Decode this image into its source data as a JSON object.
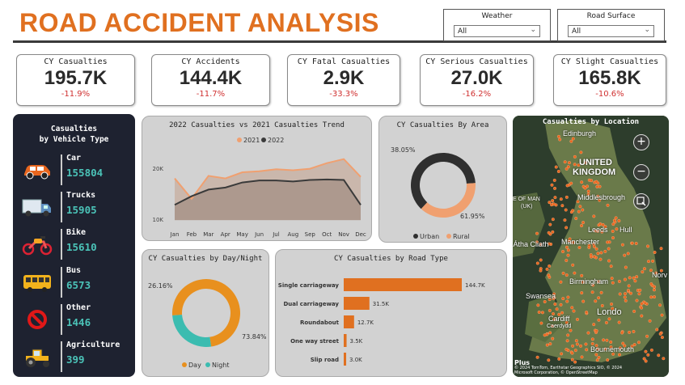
{
  "header": {
    "title": "ROAD ACCIDENT ANALYSIS"
  },
  "filters": {
    "weather": {
      "label": "Weather",
      "value": "All"
    },
    "road_surface": {
      "label": "Road Surface",
      "value": "All"
    }
  },
  "kpis": [
    {
      "label": "CY Casualties",
      "value": "195.7K",
      "change": "-11.9%"
    },
    {
      "label": "CY Accidents",
      "value": "144.4K",
      "change": "-11.7%"
    },
    {
      "label": "CY Fatal Casualties",
      "value": "2.9K",
      "change": "-33.3%"
    },
    {
      "label": "CY Serious Casualties",
      "value": "27.0K",
      "change": "-16.2%"
    },
    {
      "label": "CY Slight Casualties",
      "value": "165.8K",
      "change": "-10.6%"
    }
  ],
  "vehicle_panel": {
    "title_line1": "Casualties",
    "title_line2": "by Vehicle Type",
    "items": [
      {
        "name": "Car",
        "value": "155804",
        "icon": "car-icon"
      },
      {
        "name": "Trucks",
        "value": "15905",
        "icon": "truck-icon"
      },
      {
        "name": "Bike",
        "value": "15610",
        "icon": "motorbike-icon"
      },
      {
        "name": "Bus",
        "value": "6573",
        "icon": "bus-icon"
      },
      {
        "name": "Other",
        "value": "1446",
        "icon": "no-entry-icon"
      },
      {
        "name": "Agriculture",
        "value": "399",
        "icon": "tractor-icon"
      }
    ]
  },
  "colors": {
    "accent": "#e07020",
    "teal": "#4bc3b8",
    "negative": "#d03030",
    "dark": "#1e2230"
  },
  "chart_data": [
    {
      "type": "area",
      "title": "2022 Casualties vs 2021 Casualties Trend",
      "categories": [
        "Jan",
        "Feb",
        "Mar",
        "Apr",
        "May",
        "Jun",
        "Jul",
        "Aug",
        "Sep",
        "Oct",
        "Nov",
        "Dec"
      ],
      "yticks": [
        "20K",
        "10K"
      ],
      "yticks_values": [
        20000,
        10000
      ],
      "ylim": [
        9500,
        23500
      ],
      "series": [
        {
          "name": "2021",
          "color": "#f0a070",
          "values": [
            18000,
            14000,
            18500,
            18000,
            19200,
            19400,
            19800,
            19600,
            19900,
            21000,
            21800,
            18300
          ]
        },
        {
          "name": "2022",
          "color": "#3a3a3a",
          "values": [
            12800,
            14500,
            15800,
            16200,
            17200,
            17600,
            17600,
            17400,
            17700,
            17800,
            17700,
            12800
          ]
        }
      ],
      "legend": "top-center"
    },
    {
      "type": "pie",
      "title": "CY Casualties By Area",
      "labels": [
        "Urban",
        "Rural"
      ],
      "values": [
        61.95,
        38.05
      ],
      "value_labels": [
        "61.95%",
        "38.05%"
      ],
      "colors": [
        "#2f2f2f",
        "#f0a070"
      ]
    },
    {
      "type": "pie",
      "title": "CY Casualties by Day/Night",
      "labels": [
        "Day",
        "Night"
      ],
      "values": [
        73.84,
        26.16
      ],
      "value_labels": [
        "73.84%",
        "26.16%"
      ],
      "colors": [
        "#e8901e",
        "#3bbcb0"
      ]
    },
    {
      "type": "bar",
      "orientation": "horizontal",
      "title": "CY Casualties by Road Type",
      "categories": [
        "Single carriageway",
        "Dual carriageway",
        "Roundabout",
        "One way street",
        "Slip road"
      ],
      "values": [
        144700,
        31500,
        12700,
        3500,
        3000
      ],
      "value_labels": [
        "144.7K",
        "31.5K",
        "12.7K",
        "3.5K",
        "3.0K"
      ],
      "color": "#e07020"
    }
  ],
  "map": {
    "title": "Casualties by Location",
    "labels": {
      "edinburgh": "Edinburgh",
      "united": "UNITED",
      "kingdom": "KINGDOM",
      "isle": "E OF MAN",
      "uk": "(UK)",
      "middlesbrough": "Middlesbrough",
      "leeds": "Leeds",
      "hull": "Hull",
      "manchester": "Manchester",
      "baile": "Baile Átha Cliath",
      "birmingham": "Birmingham",
      "swansea": "Swansea",
      "cardiff": "Cardiff",
      "caerdydd": "Caerdydd",
      "london": "Londo",
      "norwich": "Norv",
      "bournemouth": "Bournemouth"
    },
    "zoom_in": "+",
    "zoom_out": "−",
    "credit_line1": "© 2024 TomTom, Earthstar Geographics SIO, © 2024",
    "credit_line2": "Microsoft Corporation, © OpenStreetMap",
    "brand": "Plus"
  }
}
